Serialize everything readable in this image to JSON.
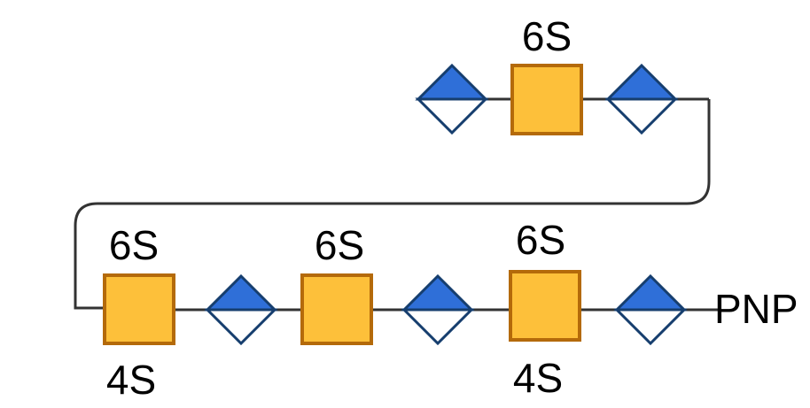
{
  "colors": {
    "square_fill": "#FDC03A",
    "square_stroke": "#B46A0A",
    "diamond_top": "#2F6FD8",
    "diamond_stroke": "#163E6E",
    "line": "#333333"
  },
  "residues": {
    "top_row": [
      {
        "type": "diamond",
        "icon": "blue-white-diamond-icon"
      },
      {
        "type": "square",
        "icon": "yellow-square-icon",
        "label_top": "6S"
      },
      {
        "type": "diamond",
        "icon": "blue-white-diamond-icon"
      }
    ],
    "bottom_row": [
      {
        "type": "square",
        "icon": "yellow-square-icon",
        "label_top": "6S",
        "label_bottom": "4S"
      },
      {
        "type": "diamond",
        "icon": "blue-white-diamond-icon"
      },
      {
        "type": "square",
        "icon": "yellow-square-icon",
        "label_top": "6S"
      },
      {
        "type": "diamond",
        "icon": "blue-white-diamond-icon"
      },
      {
        "type": "square",
        "icon": "yellow-square-icon",
        "label_top": "6S",
        "label_bottom": "4S"
      },
      {
        "type": "diamond",
        "icon": "blue-white-diamond-icon"
      }
    ]
  },
  "terminal_label": "PNP"
}
